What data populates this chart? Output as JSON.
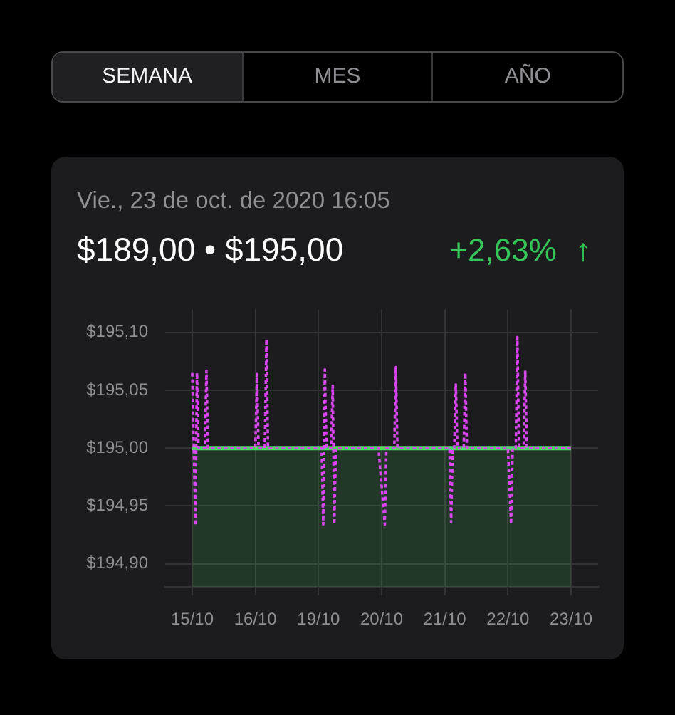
{
  "chart_data": {
    "type": "line",
    "title": "$189,00 • $195,00",
    "subtitle": "Vie., 23 de oct. de 2020 16:05",
    "annotations": [
      "SEMANA",
      "MES",
      "AÑO",
      "+2,63% ↑"
    ],
    "categories": [
      "15/10",
      null,
      null,
      null,
      null,
      null,
      null,
      null,
      null,
      null,
      null,
      null,
      null,
      null,
      null,
      null,
      null,
      null,
      null,
      null,
      null,
      null,
      null,
      null,
      null,
      null,
      null,
      null,
      null,
      null,
      null,
      null,
      null,
      null,
      null,
      null,
      null,
      null,
      null,
      null,
      "16/10",
      null,
      null,
      null,
      null,
      null,
      null,
      null,
      null,
      null,
      null,
      null,
      null,
      null,
      null,
      null,
      null,
      null,
      null,
      null,
      null,
      null,
      null,
      null,
      null,
      null,
      null,
      null,
      null,
      null,
      null,
      null,
      null,
      null,
      null,
      null,
      null,
      null,
      null,
      null,
      "19/10",
      null,
      null,
      null,
      null,
      null,
      null,
      null,
      null,
      null,
      null,
      null,
      null,
      null,
      null,
      null,
      null,
      null,
      null,
      null,
      null,
      null,
      null,
      null,
      null,
      null,
      null,
      null,
      null,
      null,
      null,
      null,
      null,
      null,
      null,
      null,
      null,
      null,
      null,
      null,
      "20/10",
      null,
      null,
      null,
      null,
      null,
      null,
      null,
      null,
      null,
      null,
      null,
      null,
      null,
      null,
      null,
      null,
      null,
      null,
      null,
      null,
      null,
      null,
      null,
      null,
      null,
      null,
      null,
      null,
      null,
      null,
      null,
      null,
      null,
      null,
      null,
      null,
      null,
      null,
      null,
      "21/10",
      null,
      null,
      null,
      null,
      null,
      null,
      null,
      null,
      null,
      null,
      null,
      null,
      null,
      null,
      null,
      null,
      null,
      null,
      null,
      null,
      null,
      null,
      null,
      null,
      null,
      null,
      null,
      null,
      null,
      null,
      null,
      null,
      null,
      null,
      null,
      null,
      null,
      null,
      null,
      "22/10",
      null,
      null,
      null,
      null,
      null,
      null,
      null,
      null,
      null,
      null,
      null,
      null,
      null,
      null,
      null,
      null,
      null,
      null,
      null,
      null,
      null,
      null,
      null,
      null,
      null,
      null,
      null,
      null,
      null,
      null,
      null,
      null,
      null,
      null,
      null,
      null,
      null,
      null,
      null,
      "23/10"
    ],
    "ylim": [
      194.88,
      195.12
    ],
    "yticks": [
      {
        "value": 194.9,
        "label": "$194,90"
      },
      {
        "value": 194.95,
        "label": "$194,95"
      },
      {
        "value": 195.0,
        "label": "$195,00"
      },
      {
        "value": 195.05,
        "label": "$195,05"
      },
      {
        "value": 195.1,
        "label": "$195,10"
      }
    ],
    "grid": true,
    "marker": "none",
    "series": [
      {
        "type": "area",
        "color": "#4cd964",
        "values": [
          195,
          195,
          195,
          195,
          195,
          195,
          195,
          195,
          195,
          195,
          195,
          195,
          195,
          195,
          195,
          195,
          195,
          195,
          195,
          195,
          195,
          195,
          195,
          195,
          195,
          195,
          195,
          195,
          195,
          195,
          195,
          195,
          195,
          195,
          195,
          195,
          195,
          195,
          195,
          195,
          195,
          195,
          195,
          195,
          195,
          195,
          195,
          195,
          195,
          195,
          195,
          195,
          195,
          195,
          195,
          195,
          195,
          195,
          195,
          195,
          195,
          195,
          195,
          195,
          195,
          195,
          195,
          195,
          195,
          195,
          195,
          195,
          195,
          195,
          195,
          195,
          195,
          195,
          195,
          195,
          195,
          195,
          195,
          195,
          195,
          195,
          195,
          195,
          195,
          195,
          195,
          195,
          195,
          195,
          195,
          195,
          195,
          195,
          195,
          195,
          195,
          195,
          195,
          195,
          195,
          195,
          195,
          195,
          195,
          195,
          195,
          195,
          195,
          195,
          195,
          195,
          195,
          195,
          195,
          195,
          195,
          195,
          195,
          195,
          195,
          195,
          195,
          195,
          195,
          195,
          195,
          195,
          195,
          195,
          195,
          195,
          195,
          195,
          195,
          195,
          195,
          195,
          195,
          195,
          195,
          195,
          195,
          195,
          195,
          195,
          195,
          195,
          195,
          195,
          195,
          195,
          195,
          195,
          195,
          195,
          195,
          195,
          195,
          195,
          195,
          195,
          195,
          195,
          195,
          195,
          195,
          195,
          195,
          195,
          195,
          195,
          195,
          195,
          195,
          195,
          195,
          195,
          195,
          195,
          195,
          195,
          195,
          195,
          195,
          195,
          195,
          195,
          195,
          195,
          195,
          195,
          195,
          195,
          195,
          195,
          195,
          195,
          195,
          195,
          195,
          195,
          195,
          195,
          195,
          195,
          195,
          195,
          195,
          195,
          195,
          195,
          195,
          195,
          195,
          195,
          195,
          195,
          195,
          195,
          195,
          195,
          195,
          195,
          195,
          195,
          195,
          195,
          195,
          195,
          195,
          195,
          195,
          195,
          195,
          195,
          195
        ]
      },
      {
        "color": "#d946ef",
        "line_style": "dashed",
        "values": [
          195.065,
          195,
          194.933,
          195.065,
          195,
          195,
          195,
          195,
          195,
          195.067,
          195,
          195,
          195,
          195,
          195,
          195,
          195,
          195,
          195,
          195,
          195,
          195,
          195,
          195,
          195,
          195,
          195,
          195,
          195,
          195,
          195,
          195,
          195,
          195,
          195,
          195,
          195,
          195,
          195,
          195,
          195,
          195.064,
          195,
          195,
          195,
          195,
          195,
          195.094,
          195,
          195,
          195,
          195,
          195,
          195,
          195,
          195,
          195,
          195,
          195,
          195,
          195,
          195,
          195,
          195,
          195,
          195,
          195,
          195,
          195,
          195,
          195,
          195,
          195,
          195,
          195,
          195,
          195,
          195,
          195,
          195,
          195,
          195,
          195,
          194.934,
          195.068,
          195,
          195,
          195,
          195,
          195.054,
          194.934,
          195,
          195,
          195,
          195,
          195,
          195,
          195,
          195,
          195,
          195,
          195,
          195,
          195,
          195,
          195,
          195,
          195,
          195,
          195,
          195,
          195,
          195,
          195,
          195,
          195,
          195,
          195,
          195,
          194.983,
          194.967,
          194.95,
          194.934,
          195,
          195,
          195,
          195,
          195,
          195,
          195.07,
          195,
          195,
          195,
          195,
          195,
          195,
          195,
          195,
          195,
          195,
          195,
          195,
          195,
          195,
          195,
          195,
          195,
          195,
          195,
          195,
          195,
          195,
          195,
          195,
          195,
          195,
          195,
          195,
          195,
          195,
          195,
          195,
          195,
          195,
          194.936,
          195,
          195,
          195.055,
          195,
          195,
          195,
          195,
          195,
          195.065,
          195,
          195,
          195,
          195,
          195,
          195,
          195,
          195,
          195,
          195,
          195,
          195,
          195,
          195,
          195,
          195,
          195,
          195,
          195,
          195,
          195,
          195,
          195,
          195,
          195,
          195,
          195,
          194.967,
          194.934,
          195,
          195,
          195,
          195.096,
          195,
          195,
          195,
          195,
          195.067,
          195,
          195,
          195,
          195,
          195,
          195,
          195,
          195,
          195,
          195,
          195,
          195,
          195,
          195,
          195,
          195,
          195,
          195,
          195,
          195,
          195,
          195,
          195,
          195,
          195,
          195,
          195,
          195,
          195
        ]
      }
    ]
  }
}
